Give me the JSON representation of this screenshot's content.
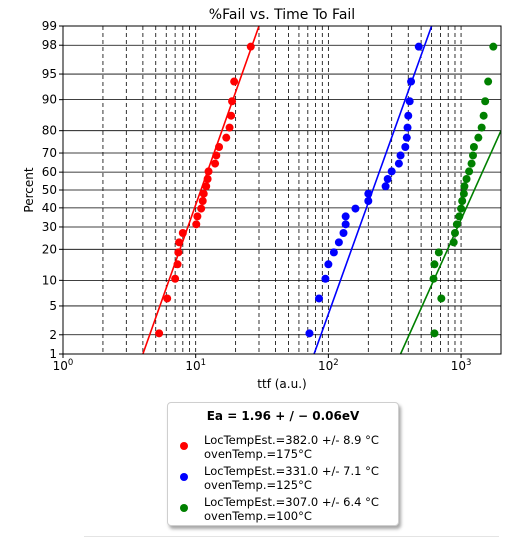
{
  "chart_data": {
    "type": "scatter",
    "title": "%Fail vs. Time To Fail",
    "xlabel": "ttf (a.u.)",
    "ylabel": "Percent",
    "x_scale": "log",
    "y_scale": "probability",
    "xlim": [
      1,
      2000
    ],
    "ylim": [
      1,
      99
    ],
    "grid": true,
    "x_ticks": [
      {
        "value": 1,
        "label": "10",
        "exp": "0"
      },
      {
        "value": 10,
        "label": "10",
        "exp": "1"
      },
      {
        "value": 100,
        "label": "10",
        "exp": "2"
      },
      {
        "value": 1000,
        "label": "10",
        "exp": "3"
      }
    ],
    "y_ticks": [
      1,
      2,
      5,
      10,
      20,
      30,
      40,
      50,
      60,
      70,
      80,
      90,
      95,
      98,
      99
    ],
    "legend": {
      "title": "Ea = 1.96 + / − 0.06eV",
      "placement": "below-chart"
    },
    "series": [
      {
        "name_line1": "LocTempEst.=382.0 +/- 8.9 °C",
        "name_line2": "ovenTemp.=175°C",
        "color": "#ff0000",
        "points": [
          [
            5.3,
            2.1
          ],
          [
            6.1,
            6.2
          ],
          [
            7.0,
            10.4
          ],
          [
            7.3,
            14.6
          ],
          [
            7.4,
            18.8
          ],
          [
            7.5,
            22.9
          ],
          [
            8.0,
            27.1
          ],
          [
            10.1,
            31.3
          ],
          [
            10.3,
            35.4
          ],
          [
            11.0,
            39.6
          ],
          [
            11.3,
            43.8
          ],
          [
            11.5,
            47.9
          ],
          [
            12.0,
            52.1
          ],
          [
            12.3,
            56.2
          ],
          [
            12.5,
            60.4
          ],
          [
            14.0,
            64.6
          ],
          [
            14.3,
            68.8
          ],
          [
            15.0,
            72.9
          ],
          [
            17.0,
            77.1
          ],
          [
            18.0,
            81.2
          ],
          [
            18.5,
            85.4
          ],
          [
            18.8,
            89.6
          ],
          [
            19.5,
            93.8
          ],
          [
            26.0,
            97.9
          ]
        ],
        "fit_line": [
          [
            4.0,
            1
          ],
          [
            30.0,
            99
          ]
        ]
      },
      {
        "name_line1": "LocTempEst.=331.0 +/- 7.1 °C",
        "name_line2": "ovenTemp.=125°C",
        "color": "#0000ff",
        "points": [
          [
            72,
            2.1
          ],
          [
            85,
            6.2
          ],
          [
            95,
            10.4
          ],
          [
            100,
            14.6
          ],
          [
            110,
            18.8
          ],
          [
            120,
            22.9
          ],
          [
            130,
            27.1
          ],
          [
            135,
            31.3
          ],
          [
            135,
            35.4
          ],
          [
            160,
            39.6
          ],
          [
            200,
            43.8
          ],
          [
            200,
            47.9
          ],
          [
            270,
            52.1
          ],
          [
            280,
            56.2
          ],
          [
            300,
            60.4
          ],
          [
            340,
            64.6
          ],
          [
            350,
            68.8
          ],
          [
            380,
            72.9
          ],
          [
            390,
            77.1
          ],
          [
            395,
            81.2
          ],
          [
            400,
            85.4
          ],
          [
            410,
            89.6
          ],
          [
            420,
            93.8
          ],
          [
            480,
            97.9
          ]
        ],
        "fit_line": [
          [
            78,
            1
          ],
          [
            600,
            99
          ]
        ]
      },
      {
        "name_line1": "LocTempEst.=307.0 +/- 6.4 °C",
        "name_line2": "ovenTemp.=100°C",
        "color": "#008000",
        "points": [
          [
            630,
            2.1
          ],
          [
            710,
            6.2
          ],
          [
            620,
            10.4
          ],
          [
            630,
            14.6
          ],
          [
            680,
            18.8
          ],
          [
            880,
            22.9
          ],
          [
            900,
            27.1
          ],
          [
            930,
            31.3
          ],
          [
            970,
            35.4
          ],
          [
            1000,
            39.6
          ],
          [
            1020,
            43.8
          ],
          [
            1050,
            47.9
          ],
          [
            1060,
            52.1
          ],
          [
            1100,
            56.2
          ],
          [
            1150,
            60.4
          ],
          [
            1200,
            64.6
          ],
          [
            1230,
            68.8
          ],
          [
            1250,
            72.9
          ],
          [
            1350,
            77.1
          ],
          [
            1430,
            81.2
          ],
          [
            1480,
            85.4
          ],
          [
            1520,
            89.6
          ],
          [
            1600,
            93.8
          ],
          [
            1750,
            97.9
          ]
        ],
        "fit_line": [
          [
            350,
            1
          ],
          [
            2000,
            80
          ]
        ]
      }
    ]
  }
}
